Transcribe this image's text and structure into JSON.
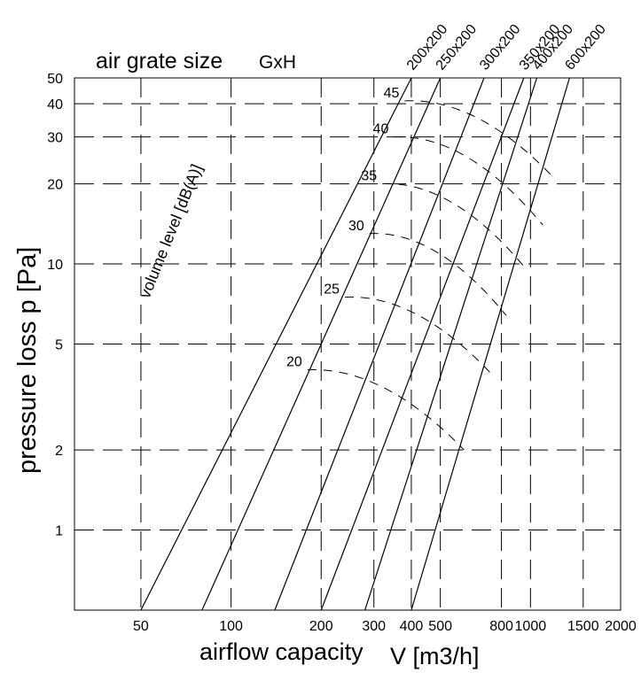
{
  "chart_data": {
    "type": "line",
    "title": "air grate size",
    "title_suffix": "GxH",
    "xlabel": "airflow capacity",
    "xlabel_unit": "V [m3/h]",
    "ylabel": "pressure loss  p [Pa]",
    "noise_label": "volume level  [dB(A)]",
    "x_scale": "log",
    "y_scale": "log",
    "xlim": [
      30,
      2000
    ],
    "ylim": [
      0.5,
      50
    ],
    "grid": true,
    "x_ticks": [
      50,
      100,
      200,
      300,
      400,
      500,
      800,
      1000,
      1500,
      2000
    ],
    "x_tick_labels": [
      "50",
      "100",
      "200",
      "300",
      "400",
      "500",
      "800",
      "1000",
      "1500",
      "2000"
    ],
    "y_ticks": [
      1,
      2,
      5,
      10,
      20,
      30,
      40,
      50
    ],
    "y_tick_labels": [
      "1",
      "2",
      "5",
      "10",
      "20",
      "30",
      "40",
      "50"
    ],
    "series": [
      {
        "name": "200x200",
        "x": [
          50,
          400
        ],
        "y": [
          0.5,
          50
        ]
      },
      {
        "name": "250x200",
        "x": [
          80,
          500
        ],
        "y": [
          0.5,
          50
        ]
      },
      {
        "name": "300x200",
        "x": [
          140,
          700
        ],
        "y": [
          0.5,
          50
        ]
      },
      {
        "name": "350x200",
        "x": [
          200,
          950
        ],
        "y": [
          0.5,
          50
        ]
      },
      {
        "name": "400x200",
        "x": [
          280,
          1050
        ],
        "y": [
          0.5,
          50
        ]
      },
      {
        "name": "600x200",
        "x": [
          400,
          1350
        ],
        "y": [
          0.5,
          50
        ]
      }
    ],
    "noise_curves": [
      {
        "label": "20",
        "x": [
          180,
          600
        ],
        "y": [
          4,
          2
        ]
      },
      {
        "label": "25",
        "x": [
          240,
          750
        ],
        "y": [
          7.5,
          3.8
        ]
      },
      {
        "label": "30",
        "x": [
          290,
          830
        ],
        "y": [
          13,
          6.4
        ]
      },
      {
        "label": "35",
        "x": [
          320,
          950
        ],
        "y": [
          20,
          9.8
        ]
      },
      {
        "label": "40",
        "x": [
          350,
          1100
        ],
        "y": [
          30,
          14
        ]
      },
      {
        "label": "45",
        "x": [
          380,
          1200
        ],
        "y": [
          41,
          21
        ]
      }
    ]
  }
}
